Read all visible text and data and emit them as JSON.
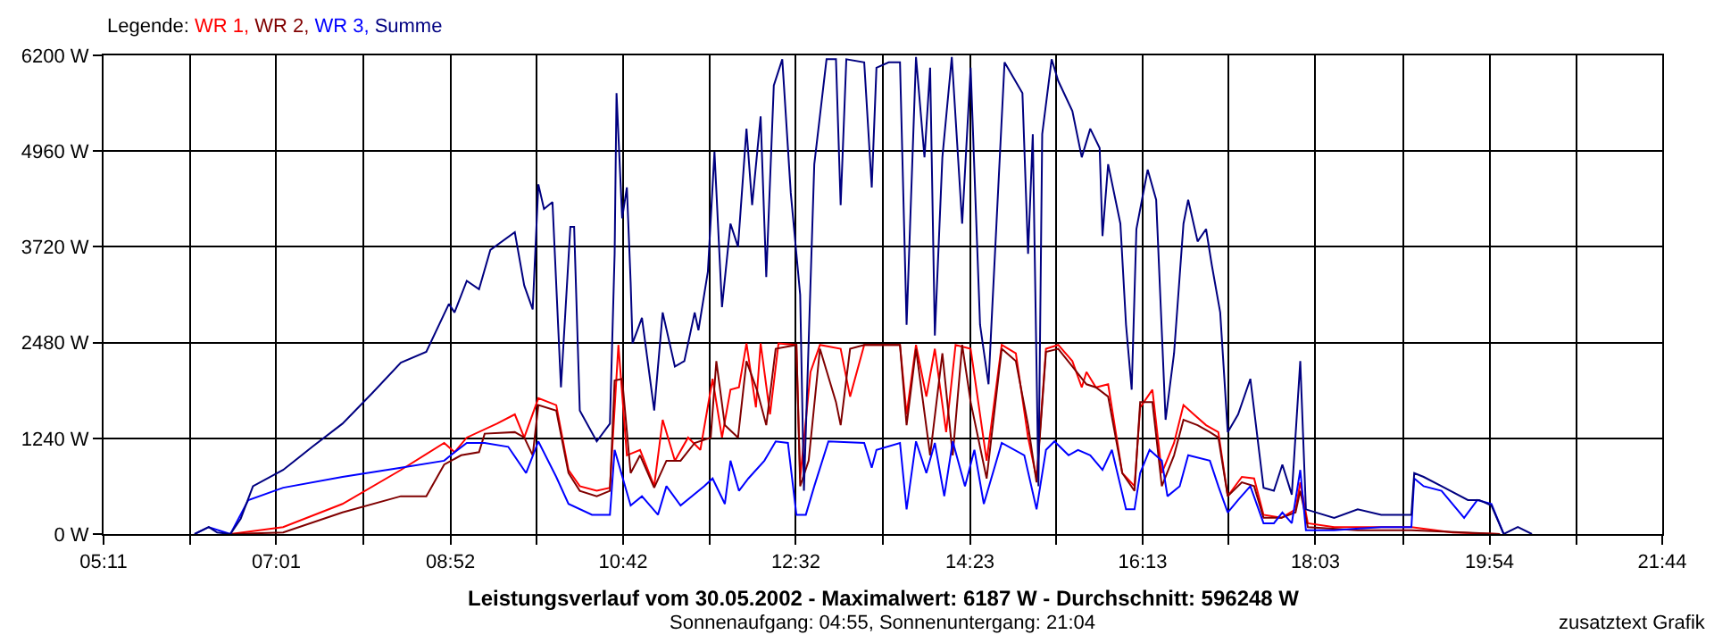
{
  "chart_data": {
    "type": "line",
    "title": "Leistungsverlauf vom 30.05.2002 - Maximalwert: 6187 W - Durchschnitt: 596248 W",
    "subtitle": "Sonnenaufgang: 04:55, Sonnenuntergang: 21:04",
    "legend_title": "Legende:",
    "annotations": [
      "zusatztext Grafik"
    ],
    "legend": "top left",
    "grid": true,
    "line_style": "solid",
    "marker": "none",
    "xlim": [
      5.1833,
      21.7333
    ],
    "xticks": [
      {
        "value": 5.1833,
        "label": "05:11"
      },
      {
        "value": 6.1,
        "label": null
      },
      {
        "value": 7.0167,
        "label": "07:01"
      },
      {
        "value": 7.94,
        "label": null
      },
      {
        "value": 8.8667,
        "label": "08:52"
      },
      {
        "value": 9.78,
        "label": null
      },
      {
        "value": 10.7,
        "label": "10:42"
      },
      {
        "value": 11.62,
        "label": null
      },
      {
        "value": 12.5333,
        "label": "12:32"
      },
      {
        "value": 13.46,
        "label": null
      },
      {
        "value": 14.3833,
        "label": "14:23"
      },
      {
        "value": 15.3,
        "label": null
      },
      {
        "value": 16.2167,
        "label": "16:13"
      },
      {
        "value": 17.13,
        "label": null
      },
      {
        "value": 18.05,
        "label": "18:03"
      },
      {
        "value": 18.98,
        "label": null
      },
      {
        "value": 19.9,
        "label": "19:54"
      },
      {
        "value": 20.82,
        "label": null
      },
      {
        "value": 21.7333,
        "label": "21:44"
      }
    ],
    "ylim": [
      0,
      6200
    ],
    "yticks": [
      {
        "value": 0,
        "label": "0 W"
      },
      {
        "value": 1240,
        "label": "1240 W"
      },
      {
        "value": 2480,
        "label": "2480 W"
      },
      {
        "value": 3720,
        "label": "3720 W"
      },
      {
        "value": 4960,
        "label": "4960 W"
      },
      {
        "value": 6200,
        "label": "6200 W"
      }
    ],
    "series": [
      {
        "name": "WR 1,",
        "color": "#ff0000",
        "x": [
          6.53,
          7.09,
          7.72,
          8.34,
          8.8,
          8.91,
          9.04,
          9.36,
          9.55,
          9.65,
          9.8,
          9.99,
          10.12,
          10.24,
          10.42,
          10.56,
          10.65,
          10.74,
          10.88,
          11.03,
          11.12,
          11.25,
          11.39,
          11.52,
          11.65,
          11.75,
          11.84,
          11.93,
          12.01,
          12.11,
          12.16,
          12.26,
          12.35,
          12.54,
          12.58,
          12.69,
          12.79,
          13.01,
          13.11,
          13.26,
          13.64,
          13.71,
          13.81,
          13.92,
          14.01,
          14.13,
          14.23,
          14.39,
          14.56,
          14.72,
          14.87,
          15.0,
          15.09,
          15.19,
          15.32,
          15.47,
          15.57,
          15.62,
          15.72,
          15.85,
          16.0,
          16.13,
          16.19,
          16.32,
          16.42,
          16.55,
          16.65,
          16.76,
          16.89,
          17.02,
          17.12,
          17.27,
          17.4,
          17.5,
          17.69,
          17.84,
          17.89,
          17.97,
          18.25,
          19.07,
          19.51,
          20.01
        ],
        "values": [
          0,
          90,
          390,
          830,
          1180,
          1060,
          1250,
          1430,
          1550,
          1250,
          1760,
          1670,
          830,
          620,
          560,
          600,
          2450,
          1020,
          1090,
          620,
          1480,
          950,
          1250,
          1090,
          2010,
          1250,
          1870,
          1900,
          2470,
          1640,
          2470,
          1550,
          2470,
          2450,
          720,
          2100,
          2450,
          2400,
          1780,
          2450,
          2450,
          1550,
          2450,
          1780,
          2400,
          1320,
          2450,
          2400,
          950,
          2450,
          2340,
          1250,
          720,
          2400,
          2450,
          2240,
          1900,
          2100,
          1900,
          1940,
          790,
          620,
          1640,
          1870,
          790,
          1180,
          1670,
          1550,
          1410,
          1320,
          490,
          740,
          720,
          250,
          210,
          320,
          670,
          140,
          90,
          90,
          20,
          0
        ]
      },
      {
        "name": "WR 2,",
        "color": "#800000",
        "x": [
          6.53,
          7.09,
          7.72,
          8.34,
          8.61,
          8.8,
          8.98,
          9.17,
          9.23,
          9.55,
          9.65,
          9.74,
          9.8,
          9.99,
          10.12,
          10.24,
          10.42,
          10.56,
          10.61,
          10.69,
          10.78,
          10.88,
          11.03,
          11.16,
          11.31,
          11.46,
          11.63,
          11.69,
          11.78,
          11.92,
          12.01,
          12.12,
          12.22,
          12.32,
          12.54,
          12.58,
          12.67,
          12.79,
          12.96,
          13.01,
          13.11,
          13.26,
          13.64,
          13.71,
          13.81,
          13.96,
          14.09,
          14.2,
          14.3,
          14.39,
          14.56,
          14.72,
          14.87,
          15.0,
          15.09,
          15.19,
          15.32,
          15.47,
          15.62,
          15.72,
          15.85,
          16.0,
          16.13,
          16.19,
          16.32,
          16.42,
          16.55,
          16.65,
          16.8,
          16.93,
          17.02,
          17.12,
          17.27,
          17.4,
          17.5,
          17.69,
          17.84,
          17.89,
          17.97,
          18.5,
          19.07,
          19.63,
          20.01
        ],
        "values": [
          0,
          20,
          280,
          490,
          490,
          900,
          1020,
          1060,
          1300,
          1320,
          1250,
          1020,
          1670,
          1600,
          790,
          560,
          490,
          560,
          1990,
          2010,
          790,
          1020,
          600,
          950,
          950,
          1180,
          1250,
          2240,
          1410,
          1250,
          2240,
          1870,
          1410,
          2400,
          2450,
          620,
          950,
          2400,
          1710,
          1410,
          2400,
          2450,
          2450,
          1410,
          2400,
          1020,
          2340,
          1020,
          2450,
          1710,
          720,
          2400,
          2240,
          1410,
          670,
          2360,
          2400,
          2170,
          1940,
          1900,
          1780,
          790,
          560,
          1710,
          1710,
          620,
          1020,
          1480,
          1410,
          1320,
          1250,
          490,
          670,
          620,
          210,
          210,
          280,
          560,
          90,
          50,
          50,
          20,
          0
        ]
      },
      {
        "name": "WR 3,",
        "color": "#0000ff",
        "x": [
          6.15,
          6.3,
          6.53,
          6.72,
          7.09,
          7.72,
          8.34,
          8.8,
          8.91,
          9.04,
          9.23,
          9.48,
          9.67,
          9.8,
          9.99,
          10.12,
          10.37,
          10.56,
          10.61,
          10.78,
          10.9,
          11.07,
          11.16,
          11.31,
          11.56,
          11.65,
          11.78,
          11.84,
          11.93,
          12.03,
          12.2,
          12.32,
          12.45,
          12.54,
          12.64,
          12.73,
          12.88,
          13.26,
          13.34,
          13.39,
          13.64,
          13.71,
          13.81,
          13.92,
          14.01,
          14.11,
          14.2,
          14.33,
          14.43,
          14.53,
          14.72,
          14.96,
          15.09,
          15.19,
          15.28,
          15.43,
          15.53,
          15.66,
          15.79,
          15.89,
          16.04,
          16.13,
          16.19,
          16.29,
          16.42,
          16.48,
          16.61,
          16.7,
          16.93,
          17.02,
          17.12,
          17.23,
          17.36,
          17.5,
          17.61,
          17.7,
          17.8,
          17.89,
          17.95,
          18.25,
          18.75,
          19.07,
          19.1,
          19.2,
          19.39,
          19.63,
          19.77,
          19.92,
          20.05
        ],
        "values": [
          0,
          90,
          0,
          440,
          600,
          740,
          860,
          950,
          1060,
          1180,
          1180,
          1130,
          790,
          1200,
          740,
          390,
          250,
          250,
          1090,
          370,
          490,
          250,
          620,
          370,
          620,
          720,
          390,
          950,
          560,
          720,
          950,
          1200,
          1180,
          250,
          250,
          620,
          1200,
          1180,
          860,
          1090,
          1180,
          320,
          1200,
          790,
          1180,
          490,
          1200,
          620,
          1090,
          390,
          1180,
          1020,
          320,
          1090,
          1200,
          1020,
          1090,
          1020,
          830,
          1090,
          320,
          320,
          790,
          1090,
          950,
          490,
          620,
          1020,
          950,
          620,
          280,
          440,
          620,
          140,
          140,
          280,
          140,
          830,
          50,
          50,
          90,
          90,
          720,
          620,
          560,
          210,
          440,
          390,
          0
        ]
      },
      {
        "name": "Summe",
        "color": "#000080",
        "x": [
          6.15,
          6.3,
          6.39,
          6.53,
          6.64,
          6.77,
          7.09,
          7.4,
          7.72,
          8.04,
          8.34,
          8.61,
          8.85,
          8.91,
          9.04,
          9.17,
          9.29,
          9.55,
          9.65,
          9.74,
          9.8,
          9.86,
          9.95,
          10.04,
          10.14,
          10.18,
          10.24,
          10.42,
          10.56,
          10.61,
          10.63,
          10.69,
          10.74,
          10.78,
          10.8,
          10.9,
          11.03,
          11.12,
          11.25,
          11.35,
          11.46,
          11.5,
          11.6,
          11.67,
          11.75,
          11.84,
          11.92,
          12.01,
          12.07,
          12.16,
          12.22,
          12.3,
          12.39,
          12.48,
          12.58,
          12.62,
          12.73,
          12.86,
          12.96,
          13.01,
          13.07,
          13.26,
          13.34,
          13.39,
          13.52,
          13.64,
          13.71,
          13.81,
          13.9,
          13.96,
          14.01,
          14.09,
          14.19,
          14.3,
          14.39,
          14.49,
          14.58,
          14.62,
          14.75,
          14.94,
          15.0,
          15.05,
          15.11,
          15.15,
          15.25,
          15.32,
          15.47,
          15.57,
          15.66,
          15.76,
          15.79,
          15.85,
          15.98,
          16.04,
          16.1,
          16.15,
          16.27,
          16.36,
          16.46,
          16.55,
          16.65,
          16.7,
          16.8,
          16.89,
          16.95,
          17.04,
          17.12,
          17.23,
          17.36,
          17.5,
          17.61,
          17.7,
          17.8,
          17.89,
          17.95,
          18.25,
          18.5,
          18.75,
          19.07,
          19.1,
          19.2,
          19.39,
          19.67,
          19.79,
          19.92,
          20.05,
          20.2,
          20.35
        ],
        "values": [
          0,
          90,
          20,
          0,
          200,
          620,
          830,
          1130,
          1430,
          1830,
          2220,
          2360,
          2980,
          2870,
          3280,
          3170,
          3680,
          3910,
          3220,
          2910,
          4530,
          4210,
          4300,
          1900,
          3980,
          3980,
          1600,
          1200,
          1430,
          3630,
          5710,
          4090,
          4490,
          3260,
          2470,
          2800,
          1600,
          2870,
          2170,
          2240,
          2870,
          2640,
          3400,
          4950,
          2940,
          4020,
          3720,
          5250,
          4260,
          5410,
          3330,
          5810,
          6150,
          4420,
          3100,
          560,
          4790,
          6150,
          6150,
          4260,
          6150,
          6110,
          4490,
          6040,
          6110,
          6110,
          2710,
          6180,
          4880,
          6040,
          2570,
          4880,
          6180,
          4020,
          6040,
          2710,
          1940,
          2940,
          6110,
          5710,
          3630,
          5180,
          620,
          5180,
          6150,
          5870,
          5480,
          4880,
          5250,
          5000,
          3860,
          4790,
          4020,
          2710,
          1870,
          3950,
          4720,
          4330,
          1480,
          2340,
          4020,
          4330,
          3790,
          3950,
          3490,
          2870,
          1320,
          1550,
          2010,
          600,
          560,
          900,
          510,
          2240,
          320,
          210,
          320,
          250,
          250,
          790,
          740,
          620,
          440,
          440,
          370,
          0,
          90,
          0
        ]
      }
    ]
  }
}
